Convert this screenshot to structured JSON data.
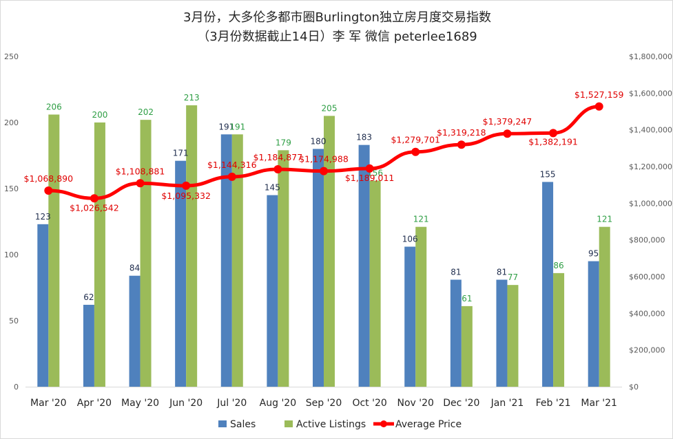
{
  "chart_data": {
    "type": "bar",
    "title": "3月份，大多伦多都市圈Burlington独立房月度交易指数",
    "subtitle": "（3月份数据截止14日）李 军  微信  peterlee1689",
    "categories": [
      "Mar '20",
      "Apr '20",
      "May '20",
      "Jun '20",
      "Jul '20",
      "Aug '20",
      "Sep '20",
      "Oct '20",
      "Nov '20",
      "Dec '20",
      "Jan '21",
      "Feb '21",
      "Mar '21"
    ],
    "y_left": {
      "min": 0,
      "max": 250,
      "ticks": [
        "0",
        "50",
        "100",
        "150",
        "200",
        "250"
      ],
      "tick_values": [
        0,
        50,
        100,
        150,
        200,
        250
      ]
    },
    "y_right": {
      "min": 0,
      "max": 1800000,
      "ticks": [
        "$0",
        "$200,000",
        "$400,000",
        "$600,000",
        "$800,000",
        "$1,000,000",
        "$1,200,000",
        "$1,400,000",
        "$1,600,000",
        "$1,800,000"
      ],
      "tick_values": [
        0,
        200000,
        400000,
        600000,
        800000,
        1000000,
        1200000,
        1400000,
        1600000,
        1800000
      ]
    },
    "series": [
      {
        "name": "Sales",
        "kind": "bar",
        "axis": "left",
        "color": "#4f81bd",
        "values": [
          123,
          62,
          84,
          171,
          191,
          145,
          180,
          183,
          106,
          81,
          81,
          155,
          95
        ],
        "labels": [
          "123",
          "62",
          "84",
          "171",
          "191",
          "145",
          "180",
          "183",
          "106",
          "81",
          "81",
          "155",
          "95"
        ]
      },
      {
        "name": "Active Listings",
        "kind": "bar",
        "axis": "left",
        "color": "#9bbb59",
        "values": [
          206,
          200,
          202,
          213,
          191,
          179,
          205,
          156,
          121,
          61,
          77,
          86,
          121
        ],
        "labels": [
          "206",
          "200",
          "202",
          "213",
          "191",
          "179",
          "205",
          "156",
          "121",
          "61",
          "77",
          "86",
          "121"
        ]
      },
      {
        "name": "Average Price",
        "kind": "line",
        "axis": "right",
        "color": "#ff0000",
        "values": [
          1068890,
          1026542,
          1108881,
          1095332,
          1144316,
          1184877,
          1174988,
          1189011,
          1279701,
          1319218,
          1379247,
          1382191,
          1527159
        ],
        "labels": [
          "$1,068,890",
          "$1,026,542",
          "$1,108,881",
          "$1,095,332",
          "$1,144,316",
          "$1,184,877",
          "$1,174,988",
          "$1,189,011",
          "$1,279,701",
          "$1,319,218",
          "$1,379,247",
          "$1,382,191",
          "$1,527,159"
        ]
      }
    ],
    "grid": false,
    "legend": "bottom"
  }
}
